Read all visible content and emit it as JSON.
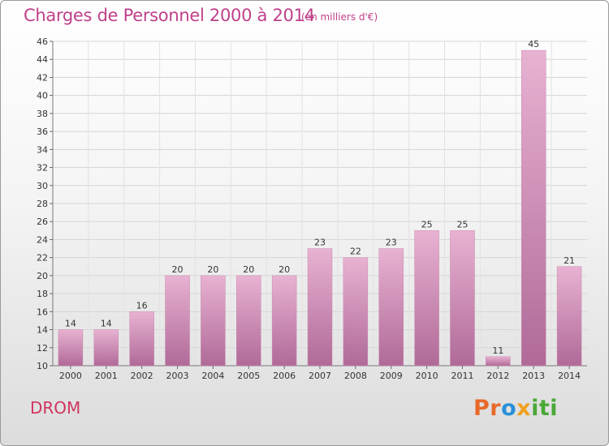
{
  "header": {
    "title": "Charges de Personnel 2000 à 2014",
    "unit": "(en milliers d'€)"
  },
  "footer": {
    "region": "DROM",
    "logo": "Proxiti"
  },
  "colors": {
    "accent": "#c0408a",
    "bar_light": "#e8b0d0",
    "bar_dark": "#b06a98"
  },
  "chart_data": {
    "type": "bar",
    "categories": [
      "2000",
      "2001",
      "2002",
      "2003",
      "2004",
      "2005",
      "2006",
      "2007",
      "2008",
      "2009",
      "2010",
      "2011",
      "2012",
      "2013",
      "2014"
    ],
    "values": [
      14,
      14,
      16,
      20,
      20,
      20,
      20,
      23,
      22,
      23,
      25,
      25,
      11,
      45,
      21
    ],
    "ylim": [
      10,
      46
    ],
    "yticks": [
      10,
      12,
      14,
      16,
      18,
      20,
      22,
      24,
      26,
      28,
      30,
      32,
      34,
      36,
      38,
      40,
      42,
      44,
      46
    ],
    "grid": true
  }
}
